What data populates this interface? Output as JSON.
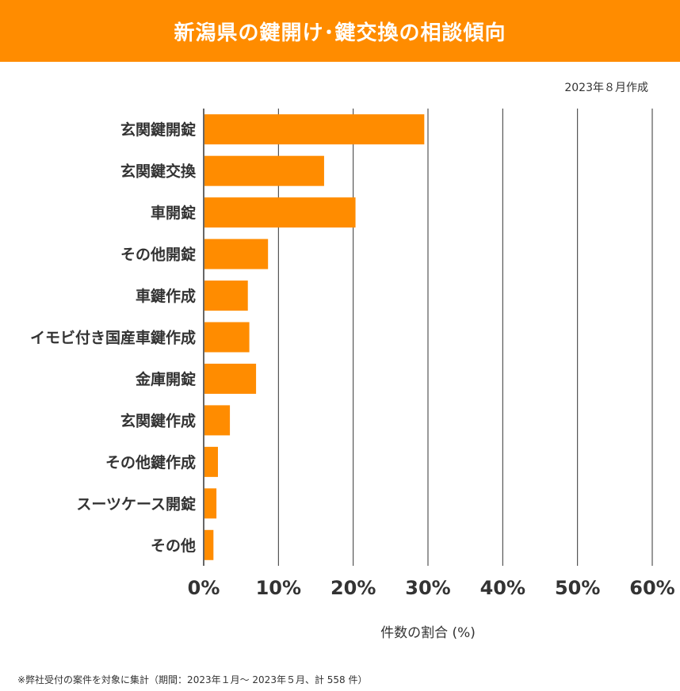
{
  "header": {
    "title": "新潟県の鍵開け･鍵交換の相談傾向",
    "subtitle": "2023年８月作成"
  },
  "footer": {
    "note": "※弊社受付の案件を対象に集計（期間：2023年１月～ 2023年５月、計 558 件）"
  },
  "colors": {
    "accent": "#ff8c00",
    "bar": "#ff8c00",
    "grid": "#333333"
  },
  "chart_data": {
    "type": "bar",
    "orientation": "horizontal",
    "categories": [
      "玄関鍵開錠",
      "玄関鍵交換",
      "車開錠",
      "その他開錠",
      "車鍵作成",
      "イモビ付き国産車鍵作成",
      "金庫開錠",
      "玄関鍵作成",
      "その他鍵作成",
      "スーツケース開錠",
      "その他"
    ],
    "values": [
      29.4,
      16.0,
      20.2,
      8.5,
      5.8,
      6.0,
      6.9,
      3.4,
      1.8,
      1.6,
      1.2
    ],
    "xlim": [
      0,
      60
    ],
    "xticks": [
      "0%",
      "10%",
      "20%",
      "30%",
      "40%",
      "50%",
      "60%"
    ],
    "xlabel": "件数の割合 (%)",
    "grid": true
  }
}
